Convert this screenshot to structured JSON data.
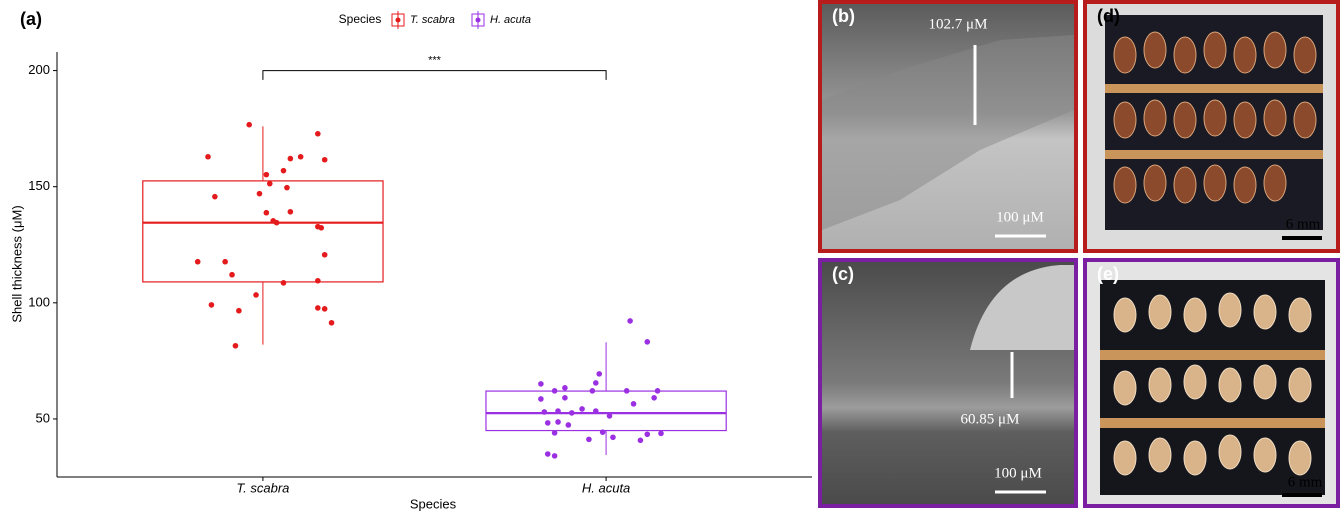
{
  "chart_data": {
    "type": "box",
    "panel_label": "(a)",
    "x_label": "Species",
    "y_label": "Shell thickness (μM)",
    "legend_title": "Species",
    "categories": [
      {
        "value": 1,
        "label": "T. scabra"
      },
      {
        "value": 2,
        "label": "H. acuta"
      }
    ],
    "xlim": [
      0.4,
      2.6
    ],
    "ylim": [
      25,
      208
    ],
    "yticks": [
      50,
      100,
      150,
      200
    ],
    "series": [
      {
        "name": "T. scabra",
        "color": "#e41a1c",
        "q1": 109,
        "median": 134.5,
        "q3": 152.5,
        "whisker_low": 82,
        "whisker_high": 176,
        "x": [
          0.96,
          0.84,
          1.16,
          1.11,
          1.08,
          1.18,
          1.06,
          1.01,
          1.02,
          0.86,
          0.99,
          1.07,
          1.08,
          1.01,
          1.03,
          1.04,
          1.16,
          1.17,
          1.18,
          0.81,
          0.89,
          0.91,
          1.16,
          1.06,
          0.85,
          0.93,
          0.98,
          1.16,
          1.18,
          1.2,
          0.92
        ],
        "values": [
          176.7,
          162.9,
          172.8,
          162.9,
          162.1,
          161.6,
          156.9,
          155.2,
          151.3,
          145.7,
          147.0,
          149.6,
          139.2,
          138.8,
          135.3,
          134.5,
          132.8,
          132.3,
          120.7,
          117.7,
          117.7,
          112.1,
          109.5,
          108.6,
          99.1,
          96.6,
          103.4,
          97.8,
          97.4,
          91.4,
          81.5
        ]
      },
      {
        "name": "H. acuta",
        "color": "#9b30e3",
        "q1": 45,
        "median": 52.5,
        "q3": 62,
        "whisker_low": 34.5,
        "whisker_high": 83,
        "x": [
          2.07,
          2.12,
          1.98,
          1.97,
          1.81,
          1.88,
          1.85,
          1.96,
          2.06,
          2.15,
          1.88,
          2.14,
          1.81,
          2.08,
          1.86,
          1.93,
          1.97,
          1.82,
          2.01,
          1.9,
          1.86,
          1.83,
          1.89,
          1.85,
          1.99,
          2.12,
          2.16,
          2.02,
          1.95,
          2.1,
          1.83,
          1.85
        ],
        "values": [
          92.2,
          83.2,
          69.4,
          65.5,
          65.1,
          63.4,
          62.1,
          62.1,
          62.1,
          62.1,
          59.1,
          59.1,
          58.6,
          56.5,
          53.4,
          54.3,
          53.4,
          53.0,
          51.3,
          52.6,
          48.7,
          48.3,
          47.4,
          44.0,
          44.3,
          43.4,
          43.8,
          42.1,
          41.2,
          40.8,
          34.9,
          34.1
        ]
      }
    ],
    "annotation": {
      "text": "***",
      "from": 1,
      "to": 2,
      "y": 200,
      "drop": 196
    }
  },
  "panels": [
    {
      "label": "(b)",
      "measure": "102.7 μM",
      "scale": "100 μM"
    },
    {
      "label": "(c)",
      "measure": "60.85 μM",
      "scale": "100 μM"
    },
    {
      "label": "(d)",
      "scale": "6 mm"
    },
    {
      "label": "(e)",
      "scale": "6 mm"
    }
  ]
}
